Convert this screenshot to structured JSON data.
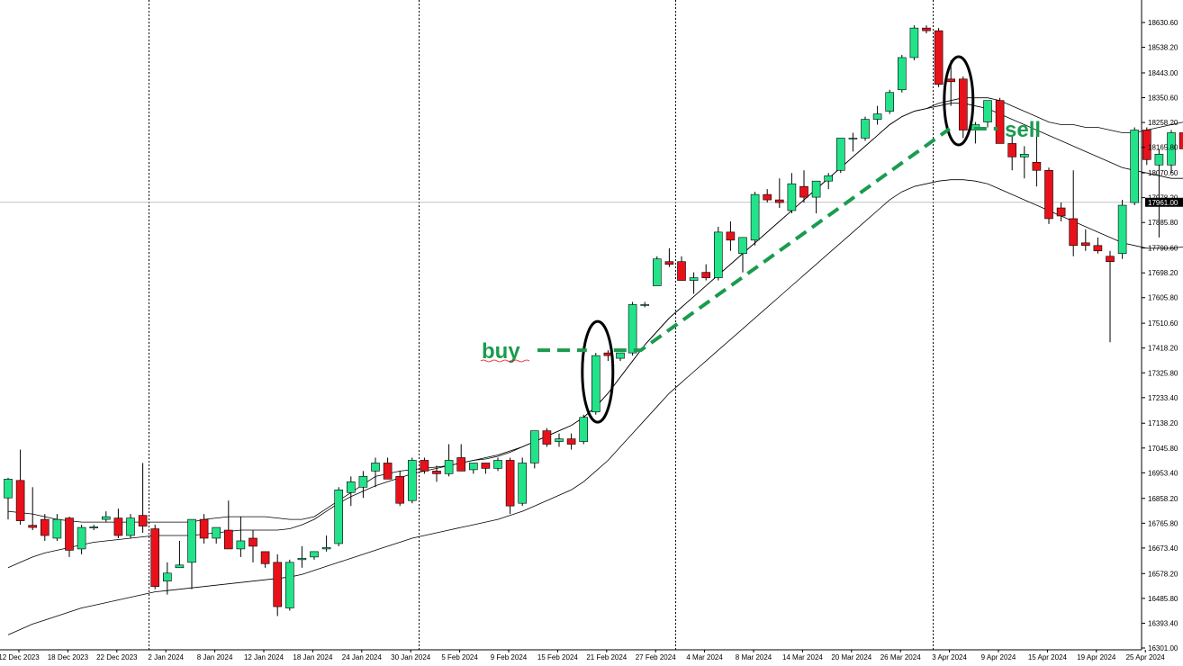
{
  "chart_data": {
    "type": "candlestick",
    "title": "",
    "xlabel": "",
    "ylabel": "",
    "ylim": [
      16301.0,
      18680.0
    ],
    "colors": {
      "bull": "#22e38a",
      "bear": "#e8111a",
      "wick": "#000000",
      "envelope": "#000000",
      "annotation": "#1a9b4e",
      "grid": "#000000",
      "crosshair": "#c0c0c0",
      "price_tag_bg": "#000000",
      "price_tag_text": "#ffffff"
    },
    "y_tick_labels": [
      "18630.60",
      "18538.20",
      "18443.00",
      "18350.60",
      "18258.20",
      "18165.80",
      "18070.60",
      "17978.20",
      "17885.80",
      "17790.60",
      "17698.20",
      "17605.80",
      "17510.60",
      "17418.20",
      "17325.80",
      "17233.40",
      "17138.20",
      "17045.80",
      "16953.40",
      "16858.20",
      "16765.80",
      "16673.40",
      "16578.20",
      "16485.80",
      "16393.40",
      "16301.00"
    ],
    "y_tick_values": [
      18630.6,
      18538.2,
      18443.0,
      18350.6,
      18258.2,
      18165.8,
      18070.6,
      17978.2,
      17885.8,
      17790.6,
      17698.2,
      17605.8,
      17510.6,
      17418.2,
      17325.8,
      17233.4,
      17138.2,
      17045.8,
      16953.4,
      16858.2,
      16765.8,
      16673.4,
      16578.2,
      16485.8,
      16393.4,
      16301.0
    ],
    "current_price": "17961.00",
    "x_labels": [
      "12 Dec 2023",
      "18 Dec 2023",
      "22 Dec 2023",
      "2 Jan 2024",
      "8 Jan 2024",
      "12 Jan 2024",
      "18 Jan 2024",
      "24 Jan 2024",
      "30 Jan 2024",
      "5 Feb 2024",
      "9 Feb 2024",
      "15 Feb 2024",
      "21 Feb 2024",
      "27 Feb 2024",
      "4 Mar 2024",
      "8 Mar 2024",
      "14 Mar 2024",
      "20 Mar 2024",
      "26 Mar 2024",
      "3 Apr 2024",
      "9 Apr 2024",
      "15 Apr 2024",
      "19 Apr 2024",
      "25 Apr 2024"
    ],
    "x_label_bar_index": [
      0,
      4,
      8,
      12,
      16,
      20,
      24,
      28,
      32,
      36,
      40,
      44,
      48,
      52,
      56,
      60,
      64,
      68,
      72,
      76,
      80,
      84,
      88,
      92
    ],
    "separator_bar_index": [
      11.5,
      33.5,
      54.5,
      75.5
    ],
    "candles": [
      [
        16860,
        16935,
        16780,
        16930
      ],
      [
        16925,
        17040,
        16760,
        16775
      ],
      [
        16758,
        16900,
        16740,
        16750
      ],
      [
        16780,
        16800,
        16700,
        16720
      ],
      [
        16710,
        16800,
        16700,
        16780
      ],
      [
        16785,
        16790,
        16640,
        16665
      ],
      [
        16670,
        16760,
        16650,
        16750
      ],
      [
        16748,
        16760,
        16740,
        16752
      ],
      [
        16780,
        16810,
        16770,
        16790
      ],
      [
        16785,
        16820,
        16710,
        16720
      ],
      [
        16720,
        16800,
        16710,
        16785
      ],
      [
        16795,
        16990,
        16730,
        16755
      ],
      [
        16745,
        16760,
        16520,
        16530
      ],
      [
        16550,
        16620,
        16500,
        16580
      ],
      [
        16600,
        16700,
        16600,
        16610
      ],
      [
        16620,
        16780,
        16520,
        16780
      ],
      [
        16780,
        16800,
        16690,
        16710
      ],
      [
        16710,
        16750,
        16690,
        16750
      ],
      [
        16740,
        16850,
        16680,
        16670
      ],
      [
        16670,
        16790,
        16640,
        16700
      ],
      [
        16710,
        16740,
        16620,
        16680
      ],
      [
        16660,
        16660,
        16600,
        16615
      ],
      [
        16620,
        16650,
        16420,
        16455
      ],
      [
        16450,
        16630,
        16440,
        16620
      ],
      [
        16630,
        16680,
        16600,
        16635
      ],
      [
        16640,
        16660,
        16630,
        16660
      ],
      [
        16670,
        16720,
        16660,
        16675
      ],
      [
        16690,
        16900,
        16680,
        16890
      ],
      [
        16880,
        16940,
        16830,
        16920
      ],
      [
        16900,
        16960,
        16860,
        16940
      ],
      [
        16960,
        17010,
        16900,
        16990
      ],
      [
        16990,
        17010,
        16930,
        16930
      ],
      [
        16940,
        16960,
        16830,
        16840
      ],
      [
        16850,
        17010,
        16840,
        17000
      ],
      [
        17000,
        17010,
        16950,
        16960
      ],
      [
        16960,
        16980,
        16920,
        16950
      ],
      [
        16950,
        17060,
        16940,
        17000
      ],
      [
        17010,
        17060,
        16960,
        16960
      ],
      [
        16965,
        16990,
        16950,
        16990
      ],
      [
        16990,
        16990,
        16950,
        16970
      ],
      [
        16970,
        17010,
        16960,
        17000
      ],
      [
        17000,
        17010,
        16800,
        16830
      ],
      [
        16840,
        17010,
        16830,
        16990
      ],
      [
        16990,
        17110,
        16970,
        17110
      ],
      [
        17110,
        17120,
        17050,
        17060
      ],
      [
        17070,
        17100,
        17050,
        17080
      ],
      [
        17080,
        17100,
        17040,
        17060
      ],
      [
        17070,
        17170,
        17060,
        17160
      ],
      [
        17180,
        17400,
        17170,
        17390
      ],
      [
        17400,
        17410,
        17370,
        17390
      ],
      [
        17380,
        17400,
        17370,
        17400
      ],
      [
        17400,
        17590,
        17390,
        17580
      ],
      [
        17580,
        17590,
        17570,
        17580
      ],
      [
        17650,
        17760,
        17650,
        17750
      ],
      [
        17740,
        17790,
        17720,
        17730
      ],
      [
        17740,
        17760,
        17670,
        17670
      ],
      [
        17670,
        17700,
        17620,
        17680
      ],
      [
        17700,
        17730,
        17670,
        17680
      ],
      [
        17680,
        17870,
        17670,
        17850
      ],
      [
        17850,
        17890,
        17780,
        17820
      ],
      [
        17770,
        17830,
        17700,
        17830
      ],
      [
        17820,
        18000,
        17800,
        17990
      ],
      [
        17990,
        18010,
        17960,
        17970
      ],
      [
        17970,
        18050,
        17940,
        17960
      ],
      [
        17930,
        18070,
        17920,
        18030
      ],
      [
        18020,
        18080,
        17960,
        17980
      ],
      [
        17980,
        18020,
        17920,
        18040
      ],
      [
        18040,
        18070,
        18010,
        18060
      ],
      [
        18080,
        18200,
        18070,
        18200
      ],
      [
        18200,
        18220,
        18150,
        18200
      ],
      [
        18200,
        18280,
        18190,
        18270
      ],
      [
        18270,
        18320,
        18250,
        18290
      ],
      [
        18300,
        18380,
        18290,
        18370
      ],
      [
        18380,
        18510,
        18370,
        18500
      ],
      [
        18500,
        18620,
        18490,
        18610
      ],
      [
        18610,
        18620,
        18590,
        18600
      ],
      [
        18600,
        18610,
        18390,
        18400
      ],
      [
        18420,
        18490,
        18320,
        18410
      ],
      [
        18420,
        18430,
        18200,
        18230
      ],
      [
        18230,
        18260,
        18180,
        18250
      ],
      [
        18260,
        18340,
        18240,
        18340
      ],
      [
        18340,
        18350,
        18200,
        18180
      ],
      [
        18180,
        18210,
        18080,
        18130
      ],
      [
        18130,
        18170,
        18050,
        18140
      ],
      [
        18110,
        18230,
        18020,
        18080
      ],
      [
        18080,
        18090,
        17880,
        17900
      ],
      [
        17940,
        17960,
        17890,
        17910
      ],
      [
        17900,
        18080,
        17760,
        17800
      ],
      [
        17810,
        17860,
        17780,
        17800
      ],
      [
        17800,
        17830,
        17770,
        17780
      ],
      [
        17760,
        17780,
        17440,
        17740
      ],
      [
        17770,
        17970,
        17750,
        17950
      ],
      [
        17960,
        18240,
        17950,
        18230
      ],
      [
        18230,
        18240,
        18100,
        18120
      ],
      [
        18100,
        18160,
        17830,
        18140
      ],
      [
        18100,
        18230,
        18070,
        18220
      ],
      [
        18220,
        18270,
        18140,
        18160
      ]
    ],
    "envelope_upper": [
      16810,
      16805,
      16800,
      16790,
      16780,
      16775,
      16770,
      16770,
      16770,
      16770,
      16770,
      16770,
      16770,
      16770,
      16770,
      16770,
      16780,
      16785,
      16790,
      16790,
      16790,
      16790,
      16785,
      16780,
      16780,
      16790,
      16820,
      16850,
      16880,
      16910,
      16940,
      16950,
      16960,
      16965,
      16970,
      16975,
      16980,
      16990,
      17000,
      17005,
      17015,
      17030,
      17050,
      17070,
      17090,
      17110,
      17130,
      17160,
      17200,
      17250,
      17310,
      17370,
      17430,
      17480,
      17530,
      17570,
      17610,
      17650,
      17690,
      17730,
      17770,
      17810,
      17850,
      17890,
      17930,
      17970,
      18010,
      18050,
      18090,
      18130,
      18170,
      18210,
      18250,
      18280,
      18300,
      18310,
      18330,
      18340,
      18350,
      18350,
      18350,
      18340,
      18320,
      18300,
      18280,
      18260,
      18250,
      18250,
      18240,
      18240,
      18230,
      18220,
      18220,
      18230,
      18240,
      18250,
      18260
    ],
    "envelope_middle": [
      16600,
      16620,
      16640,
      16655,
      16665,
      16675,
      16685,
      16695,
      16700,
      16705,
      16710,
      16715,
      16720,
      16720,
      16720,
      16720,
      16725,
      16730,
      16735,
      16740,
      16740,
      16740,
      16740,
      16745,
      16760,
      16780,
      16810,
      16840,
      16865,
      16885,
      16905,
      16920,
      16935,
      16950,
      16960,
      16970,
      16980,
      16990,
      17000,
      17010,
      17020,
      17035,
      17050,
      17070,
      17090,
      17110,
      17130,
      17160,
      17200,
      17250,
      17310,
      17370,
      17430,
      17480,
      17530,
      17570,
      17610,
      17650,
      17690,
      17730,
      17770,
      17810,
      17850,
      17890,
      17930,
      17970,
      18010,
      18050,
      18090,
      18130,
      18170,
      18210,
      18250,
      18280,
      18300,
      18310,
      18320,
      18330,
      18330,
      18320,
      18310,
      18290,
      18270,
      18250,
      18230,
      18210,
      18190,
      18170,
      18150,
      18130,
      18110,
      18090,
      18080,
      18070,
      18060,
      18050,
      18050
    ],
    "envelope_lower": [
      16350,
      16370,
      16390,
      16405,
      16420,
      16435,
      16450,
      16460,
      16470,
      16480,
      16490,
      16500,
      16510,
      16515,
      16520,
      16525,
      16530,
      16535,
      16540,
      16545,
      16550,
      16555,
      16560,
      16565,
      16575,
      16590,
      16605,
      16620,
      16635,
      16650,
      16665,
      16680,
      16695,
      16710,
      16720,
      16730,
      16740,
      16750,
      16760,
      16770,
      16780,
      16795,
      16810,
      16830,
      16850,
      16870,
      16890,
      16920,
      16960,
      17000,
      17050,
      17100,
      17150,
      17200,
      17250,
      17290,
      17330,
      17370,
      17410,
      17450,
      17490,
      17530,
      17570,
      17610,
      17650,
      17690,
      17730,
      17770,
      17810,
      17850,
      17890,
      17930,
      17970,
      18000,
      18020,
      18030,
      18040,
      18045,
      18045,
      18040,
      18030,
      18010,
      17990,
      17970,
      17950,
      17930,
      17910,
      17890,
      17870,
      17850,
      17830,
      17810,
      17800,
      17790,
      17790,
      17790,
      17795
    ],
    "annotations": {
      "buy_label": "buy",
      "sell_label": "sell",
      "buy_bar": 48,
      "buy_price": 17410,
      "sell_bar": 78,
      "sell_price": 18235
    }
  }
}
